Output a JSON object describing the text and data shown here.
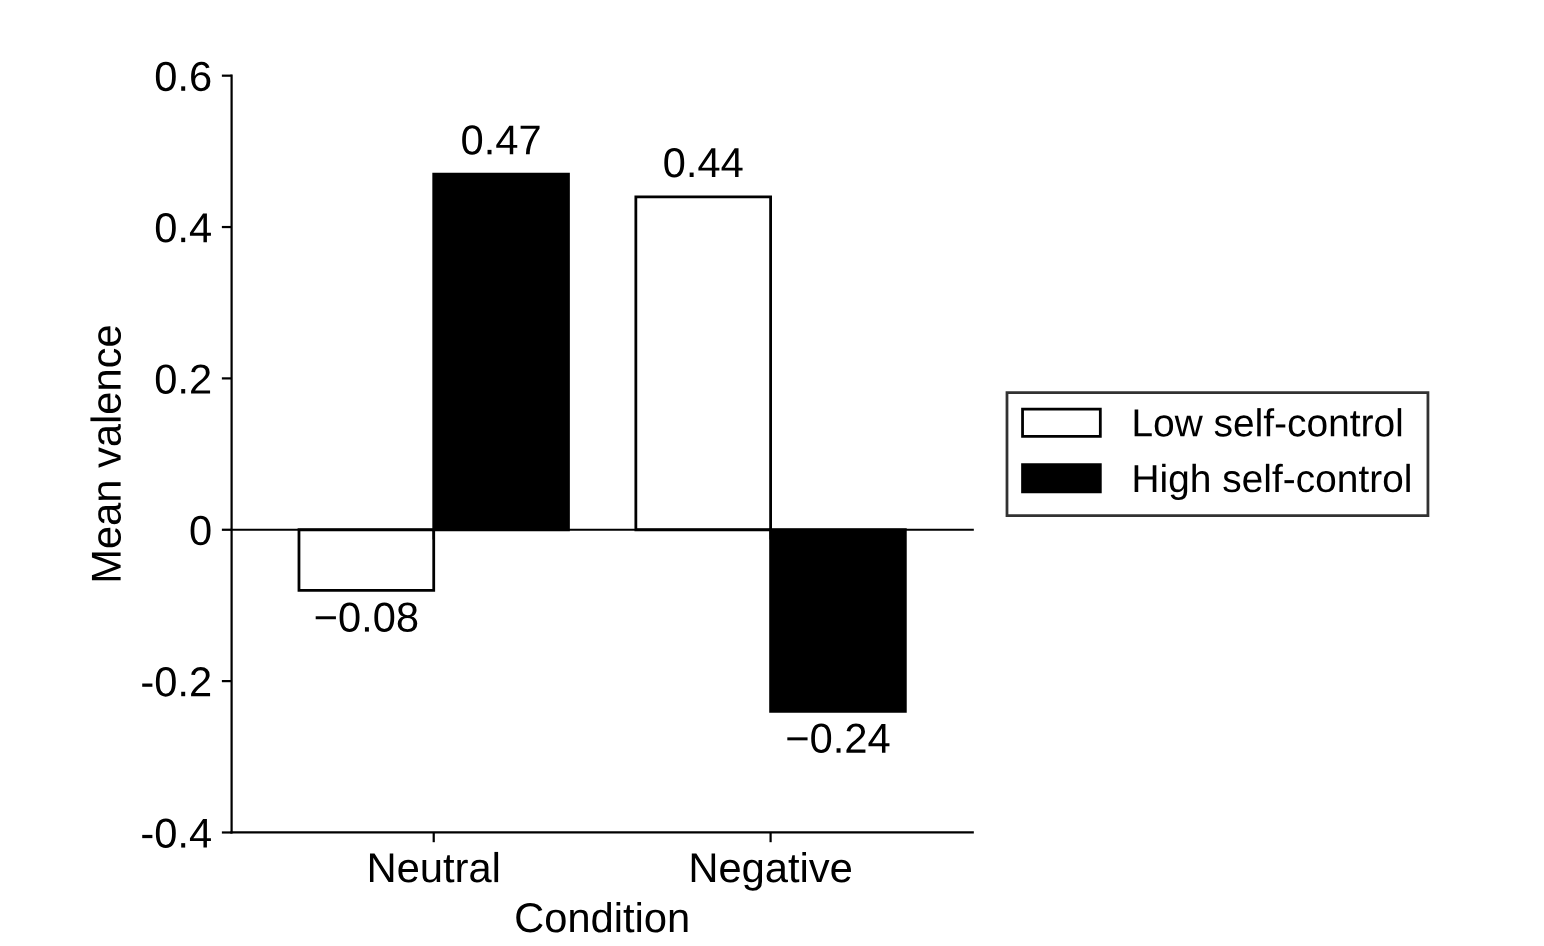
{
  "chart_data": {
    "type": "bar",
    "xlabel": "Condition",
    "ylabel": "Mean valence",
    "categories": [
      "Neutral",
      "Negative"
    ],
    "series": [
      {
        "name": "Low self-control",
        "color": "#ffffff",
        "values": [
          -0.08,
          0.44
        ],
        "value_labels": [
          "−0.08",
          "0.44"
        ]
      },
      {
        "name": "High self-control",
        "color": "#000000",
        "values": [
          0.47,
          -0.24
        ],
        "value_labels": [
          "0.47",
          "−0.24"
        ]
      }
    ],
    "ylim": [
      -0.4,
      0.6
    ],
    "yticks": [
      -0.4,
      -0.2,
      0,
      0.2,
      0.4,
      0.6
    ],
    "legend": "right"
  }
}
